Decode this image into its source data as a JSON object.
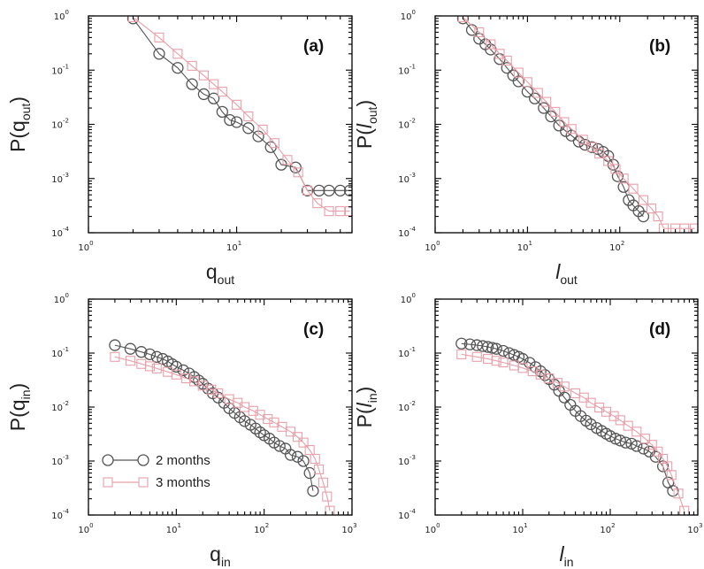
{
  "figure": {
    "colors": {
      "series_2_months": "#555555",
      "series_3_months": "#e8a0aa",
      "axis": "#000000"
    },
    "legend": {
      "position": "lower-left",
      "panel": "c",
      "entries": [
        {
          "label": "2 months",
          "marker": "circle",
          "color": "#555555"
        },
        {
          "label": "3 months",
          "marker": "square",
          "color": "#e8a0aa"
        }
      ]
    }
  },
  "chart_data": [
    {
      "type": "scatter",
      "panel_label": "(a)",
      "ylabel_main": "P(q",
      "ylabel_sub": "out",
      "ylabel_close": ")",
      "xlabel_main": "q",
      "xlabel_sub": "out",
      "xscale": "log",
      "yscale": "log",
      "xlim": [
        1,
        60
      ],
      "ylim": [
        0.0001,
        1
      ],
      "xticks": [
        {
          "base": "10",
          "exp": "0",
          "value": 1
        },
        {
          "base": "10",
          "exp": "1",
          "value": 10
        }
      ],
      "yticks": [
        {
          "base": "10",
          "exp": "-4",
          "value": 0.0001
        },
        {
          "base": "10",
          "exp": "-3",
          "value": 0.001
        },
        {
          "base": "10",
          "exp": "-2",
          "value": 0.01
        },
        {
          "base": "10",
          "exp": "-1",
          "value": 0.1
        },
        {
          "base": "10",
          "exp": "0",
          "value": 1
        }
      ],
      "series": [
        {
          "name": "2 months",
          "marker": "circle",
          "color": "#555555",
          "x": [
            2,
            3,
            4,
            5,
            6,
            7,
            8,
            9,
            10,
            12,
            14,
            17,
            20,
            25,
            30,
            36,
            42,
            50,
            58
          ],
          "y": [
            0.9,
            0.2,
            0.11,
            0.055,
            0.036,
            0.03,
            0.017,
            0.012,
            0.011,
            0.0085,
            0.006,
            0.0038,
            0.0018,
            0.0016,
            0.0006,
            0.0006,
            0.0006,
            0.0006,
            0.0006
          ]
        },
        {
          "name": "3 months",
          "marker": "square",
          "color": "#e8a0aa",
          "x": [
            2,
            3,
            4,
            5,
            6,
            7,
            8,
            10,
            12,
            15,
            18,
            22,
            26,
            30,
            35,
            42,
            50,
            58
          ],
          "y": [
            0.95,
            0.4,
            0.2,
            0.12,
            0.08,
            0.055,
            0.04,
            0.023,
            0.014,
            0.008,
            0.0045,
            0.0022,
            0.0013,
            0.0006,
            0.00035,
            0.00025,
            0.00025,
            0.00025
          ]
        }
      ]
    },
    {
      "type": "scatter",
      "panel_label": "(b)",
      "ylabel_main": "P(",
      "ylabel_italic": "l",
      "ylabel_sub": "out",
      "ylabel_close": ")",
      "xlabel_italic": "l",
      "xlabel_sub": "out",
      "xscale": "log",
      "yscale": "log",
      "xlim": [
        1,
        700
      ],
      "ylim": [
        0.0001,
        1
      ],
      "xticks": [
        {
          "base": "10",
          "exp": "0",
          "value": 1
        },
        {
          "base": "10",
          "exp": "1",
          "value": 10
        },
        {
          "base": "10",
          "exp": "2",
          "value": 100
        }
      ],
      "yticks": [
        {
          "base": "10",
          "exp": "-4",
          "value": 0.0001
        },
        {
          "base": "10",
          "exp": "-3",
          "value": 0.001
        },
        {
          "base": "10",
          "exp": "-2",
          "value": 0.01
        },
        {
          "base": "10",
          "exp": "-1",
          "value": 0.1
        },
        {
          "base": "10",
          "exp": "0",
          "value": 1
        }
      ],
      "series": [
        {
          "name": "2 months",
          "marker": "circle",
          "color": "#555555",
          "x": [
            2,
            2.5,
            3,
            3.5,
            4,
            5,
            6,
            7,
            8,
            10,
            12,
            15,
            18,
            22,
            26,
            30,
            36,
            42,
            50,
            58,
            66,
            75,
            85,
            95,
            110,
            125,
            140,
            160,
            180
          ],
          "y": [
            0.9,
            0.55,
            0.38,
            0.3,
            0.24,
            0.16,
            0.11,
            0.08,
            0.062,
            0.04,
            0.03,
            0.02,
            0.014,
            0.0095,
            0.0075,
            0.0062,
            0.0048,
            0.0042,
            0.0038,
            0.0035,
            0.0031,
            0.0026,
            0.0018,
            0.0011,
            0.0007,
            0.0004,
            0.00032,
            0.00025,
            0.0002
          ]
        },
        {
          "name": "3 months",
          "marker": "square",
          "color": "#e8a0aa",
          "x": [
            2,
            3,
            4,
            5,
            6,
            8,
            10,
            13,
            16,
            20,
            25,
            30,
            40,
            50,
            60,
            75,
            90,
            110,
            140,
            180,
            220,
            260,
            300,
            400,
            500,
            650
          ],
          "y": [
            0.95,
            0.5,
            0.3,
            0.2,
            0.15,
            0.09,
            0.06,
            0.038,
            0.026,
            0.017,
            0.011,
            0.0082,
            0.0052,
            0.0038,
            0.0029,
            0.0021,
            0.0015,
            0.001,
            0.00065,
            0.0004,
            0.00028,
            0.0002,
            0.00012,
            0.00012,
            0.00012,
            0.00012
          ]
        }
      ]
    },
    {
      "type": "scatter",
      "panel_label": "(c)",
      "ylabel_main": "P(q",
      "ylabel_sub": "in",
      "ylabel_close": ")",
      "xlabel_main": "q",
      "xlabel_sub": "in",
      "xscale": "log",
      "yscale": "log",
      "xlim": [
        1,
        1000
      ],
      "ylim": [
        0.0001,
        1
      ],
      "xticks": [
        {
          "base": "10",
          "exp": "0",
          "value": 1
        },
        {
          "base": "10",
          "exp": "1",
          "value": 10
        },
        {
          "base": "10",
          "exp": "2",
          "value": 100
        },
        {
          "base": "10",
          "exp": "3",
          "value": 1000
        }
      ],
      "yticks": [
        {
          "base": "10",
          "exp": "-4",
          "value": 0.0001
        },
        {
          "base": "10",
          "exp": "-3",
          "value": 0.001
        },
        {
          "base": "10",
          "exp": "-2",
          "value": 0.01
        },
        {
          "base": "10",
          "exp": "-1",
          "value": 0.1
        },
        {
          "base": "10",
          "exp": "0",
          "value": 1
        }
      ],
      "series": [
        {
          "name": "2 months",
          "marker": "circle",
          "color": "#555555",
          "x": [
            2,
            3,
            4,
            5,
            6,
            7,
            8,
            9,
            10,
            12,
            14,
            16,
            18,
            20,
            23,
            26,
            30,
            35,
            40,
            46,
            53,
            60,
            70,
            80,
            90,
            100,
            115,
            130,
            150,
            175,
            200,
            240,
            280,
            330,
            360
          ],
          "y": [
            0.14,
            0.12,
            0.105,
            0.095,
            0.085,
            0.078,
            0.07,
            0.062,
            0.056,
            0.048,
            0.042,
            0.036,
            0.031,
            0.027,
            0.022,
            0.018,
            0.015,
            0.012,
            0.0095,
            0.0078,
            0.0065,
            0.0055,
            0.0047,
            0.004,
            0.0034,
            0.003,
            0.0026,
            0.0022,
            0.0019,
            0.0017,
            0.0013,
            0.0012,
            0.001,
            0.0006,
            0.00028
          ]
        },
        {
          "name": "3 months",
          "marker": "square",
          "color": "#e8a0aa",
          "x": [
            2,
            3,
            4,
            5,
            6,
            8,
            10,
            13,
            16,
            20,
            25,
            30,
            40,
            50,
            60,
            75,
            90,
            110,
            130,
            160,
            200,
            240,
            280,
            330,
            380,
            420,
            470,
            520,
            560
          ],
          "y": [
            0.085,
            0.072,
            0.063,
            0.057,
            0.052,
            0.045,
            0.04,
            0.034,
            0.03,
            0.025,
            0.021,
            0.018,
            0.014,
            0.012,
            0.01,
            0.0085,
            0.0072,
            0.006,
            0.0052,
            0.0043,
            0.0035,
            0.0028,
            0.0022,
            0.0016,
            0.0011,
            0.0007,
            0.0004,
            0.00022,
            0.00012
          ]
        }
      ]
    },
    {
      "type": "scatter",
      "panel_label": "(d)",
      "ylabel_main": "P(",
      "ylabel_italic": "l",
      "ylabel_sub": "in",
      "ylabel_close": ")",
      "xlabel_italic": "l",
      "xlabel_sub": "in",
      "xscale": "log",
      "yscale": "log",
      "xlim": [
        1,
        1000
      ],
      "ylim": [
        0.0001,
        1
      ],
      "xticks": [
        {
          "base": "10",
          "exp": "0",
          "value": 1
        },
        {
          "base": "10",
          "exp": "1",
          "value": 10
        },
        {
          "base": "10",
          "exp": "2",
          "value": 100
        },
        {
          "base": "10",
          "exp": "3",
          "value": 1000
        }
      ],
      "yticks": [
        {
          "base": "10",
          "exp": "-4",
          "value": 0.0001
        },
        {
          "base": "10",
          "exp": "-3",
          "value": 0.001
        },
        {
          "base": "10",
          "exp": "-2",
          "value": 0.01
        },
        {
          "base": "10",
          "exp": "-1",
          "value": 0.1
        },
        {
          "base": "10",
          "exp": "0",
          "value": 1
        }
      ],
      "series": [
        {
          "name": "2 months",
          "marker": "circle",
          "color": "#555555",
          "x": [
            2,
            2.5,
            3,
            3.5,
            4,
            4.5,
            5,
            6,
            7,
            8,
            9,
            10,
            12,
            14,
            16,
            18,
            20,
            23,
            26,
            30,
            35,
            40,
            46,
            53,
            60,
            70,
            80,
            90,
            100,
            115,
            130,
            150,
            175,
            200,
            240,
            280,
            330,
            400,
            460,
            520
          ],
          "y": [
            0.15,
            0.145,
            0.14,
            0.135,
            0.13,
            0.125,
            0.12,
            0.11,
            0.1,
            0.092,
            0.085,
            0.078,
            0.066,
            0.055,
            0.046,
            0.039,
            0.033,
            0.026,
            0.02,
            0.015,
            0.011,
            0.0085,
            0.0068,
            0.0056,
            0.0048,
            0.0041,
            0.0036,
            0.0032,
            0.0029,
            0.0026,
            0.0024,
            0.0022,
            0.0021,
            0.0019,
            0.0017,
            0.0015,
            0.0012,
            0.0008,
            0.0004,
            0.00028
          ]
        },
        {
          "name": "3 months",
          "marker": "square",
          "color": "#e8a0aa",
          "x": [
            2,
            3,
            4,
            5,
            6,
            8,
            10,
            13,
            16,
            20,
            25,
            30,
            40,
            50,
            60,
            75,
            90,
            110,
            130,
            160,
            200,
            250,
            300,
            350,
            400,
            450,
            500,
            600,
            700
          ],
          "y": [
            0.095,
            0.085,
            0.078,
            0.072,
            0.067,
            0.059,
            0.053,
            0.046,
            0.04,
            0.034,
            0.028,
            0.024,
            0.018,
            0.015,
            0.012,
            0.0098,
            0.0082,
            0.0068,
            0.0057,
            0.0045,
            0.0035,
            0.0026,
            0.002,
            0.0015,
            0.0011,
            0.0008,
            0.00055,
            0.00025,
            0.00012
          ]
        }
      ]
    }
  ]
}
